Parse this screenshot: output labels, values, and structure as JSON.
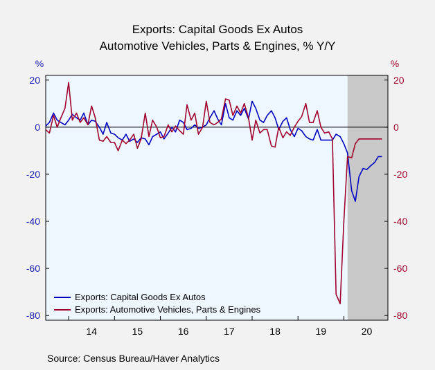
{
  "chart_data": {
    "type": "line",
    "title_lines": [
      "Exports: Capital Goods Ex Autos",
      "Automotive Vehicles, Parts & Engines, % Y/Y"
    ],
    "left_axis_unit": "%",
    "right_axis_unit": "%",
    "ylim": [
      -82,
      22
    ],
    "y_ticks": [
      20,
      0,
      -20,
      -40,
      -60,
      -80
    ],
    "x_range": [
      2013.5,
      2020.96
    ],
    "x_ticks": [
      {
        "label": "14",
        "at": 2014.5
      },
      {
        "label": "15",
        "at": 2015.5
      },
      {
        "label": "16",
        "at": 2016.5
      },
      {
        "label": "17",
        "at": 2017.5
      },
      {
        "label": "18",
        "at": 2018.5
      },
      {
        "label": "19",
        "at": 2019.5
      },
      {
        "label": "20",
        "at": 2020.5
      }
    ],
    "x_boundaries": [
      2014,
      2015,
      2016,
      2017,
      2018,
      2019,
      2020
    ],
    "recession_shading": {
      "start": 2020.08,
      "end": 2020.96,
      "color": "#c8c8c8"
    },
    "zero_line": true,
    "series": [
      {
        "name": "Exports: Capital Goods Ex Autos",
        "color": "#0000c0",
        "x": [
          2013.5,
          2013.58,
          2013.67,
          2013.75,
          2013.83,
          2013.92,
          2014.0,
          2014.08,
          2014.17,
          2014.25,
          2014.33,
          2014.42,
          2014.5,
          2014.58,
          2014.67,
          2014.75,
          2014.83,
          2014.92,
          2015.0,
          2015.08,
          2015.17,
          2015.25,
          2015.33,
          2015.42,
          2015.5,
          2015.58,
          2015.67,
          2015.75,
          2015.83,
          2015.92,
          2016.0,
          2016.08,
          2016.17,
          2016.25,
          2016.33,
          2016.42,
          2016.5,
          2016.58,
          2016.67,
          2016.75,
          2016.83,
          2016.92,
          2017.0,
          2017.08,
          2017.17,
          2017.25,
          2017.33,
          2017.42,
          2017.5,
          2017.58,
          2017.67,
          2017.75,
          2017.83,
          2017.92,
          2018.0,
          2018.08,
          2018.17,
          2018.25,
          2018.33,
          2018.42,
          2018.5,
          2018.58,
          2018.67,
          2018.75,
          2018.83,
          2018.92,
          2019.0,
          2019.08,
          2019.17,
          2019.25,
          2019.33,
          2019.42,
          2019.5,
          2019.58,
          2019.67,
          2019.75,
          2019.83,
          2019.92,
          2020.0,
          2020.08,
          2020.17,
          2020.25,
          2020.33,
          2020.42,
          2020.5,
          2020.58,
          2020.67,
          2020.75,
          2020.83
        ],
        "values": [
          0.5,
          2.0,
          6.0,
          3.0,
          2.0,
          1.0,
          3.0,
          5.5,
          4.0,
          3.0,
          6.0,
          1.0,
          3.0,
          2.5,
          0.0,
          -3.0,
          2.0,
          -2.5,
          -3.0,
          -4.5,
          -5.5,
          -3.0,
          -6.0,
          -5.0,
          -6.5,
          -4.5,
          -5.0,
          -7.5,
          -4.0,
          -3.0,
          -2.0,
          -5.0,
          -2.5,
          0.0,
          -2.0,
          3.0,
          2.0,
          -1.0,
          -0.5,
          1.0,
          -0.5,
          0.0,
          1.0,
          4.0,
          7.0,
          3.5,
          1.0,
          10.0,
          4.0,
          3.0,
          7.0,
          5.0,
          8.0,
          3.5,
          11.0,
          8.0,
          3.0,
          2.0,
          5.0,
          7.0,
          4.0,
          -1.0,
          2.5,
          4.0,
          -1.0,
          -4.0,
          -0.5,
          -1.5,
          -4.0,
          -5.0,
          -5.5,
          -1.0,
          -5.5,
          -5.5,
          -5.5,
          -5.5,
          -3.0,
          -4.0,
          -7.0,
          -11.0,
          -27.0,
          -31.5,
          -21.0,
          -17.5,
          -18.0,
          -16.5,
          -15.0,
          -12.5,
          -12.5
        ]
      },
      {
        "name": "Exports: Automotive Vehicles, Parts & Engines",
        "color": "#a0002a",
        "x": [
          2013.5,
          2013.58,
          2013.67,
          2013.75,
          2013.83,
          2013.92,
          2014.0,
          2014.08,
          2014.17,
          2014.25,
          2014.33,
          2014.42,
          2014.5,
          2014.58,
          2014.67,
          2014.75,
          2014.83,
          2014.92,
          2015.0,
          2015.08,
          2015.17,
          2015.25,
          2015.33,
          2015.42,
          2015.5,
          2015.58,
          2015.67,
          2015.75,
          2015.83,
          2015.92,
          2016.0,
          2016.08,
          2016.17,
          2016.25,
          2016.33,
          2016.42,
          2016.5,
          2016.58,
          2016.67,
          2016.75,
          2016.83,
          2016.92,
          2017.0,
          2017.08,
          2017.17,
          2017.25,
          2017.33,
          2017.42,
          2017.5,
          2017.58,
          2017.67,
          2017.75,
          2017.83,
          2017.92,
          2018.0,
          2018.08,
          2018.17,
          2018.25,
          2018.33,
          2018.42,
          2018.5,
          2018.58,
          2018.67,
          2018.75,
          2018.83,
          2018.92,
          2019.0,
          2019.08,
          2019.17,
          2019.25,
          2019.33,
          2019.42,
          2019.5,
          2019.58,
          2019.67,
          2019.75,
          2019.83,
          2019.92,
          2020.0,
          2020.08,
          2020.17,
          2020.25,
          2020.33,
          2020.42,
          2020.5,
          2020.58,
          2020.67,
          2020.75,
          2020.83
        ],
        "values": [
          -1.0,
          -2.5,
          5.0,
          0.0,
          4.0,
          8.0,
          19.0,
          3.0,
          6.0,
          2.0,
          4.0,
          1.0,
          9.0,
          4.0,
          -5.5,
          -6.0,
          -4.0,
          -6.5,
          -6.5,
          -10.0,
          -5.5,
          -7.0,
          -5.5,
          -3.0,
          -9.0,
          -5.0,
          6.0,
          -4.0,
          3.0,
          0.0,
          -4.5,
          -4.0,
          1.0,
          -2.0,
          0.5,
          -1.5,
          -3.0,
          9.5,
          3.0,
          6.0,
          -3.0,
          0.0,
          11.0,
          2.0,
          1.0,
          2.0,
          3.5,
          12.0,
          11.5,
          5.0,
          9.0,
          6.0,
          10.0,
          4.0,
          -5.5,
          3.0,
          -2.5,
          -1.0,
          -1.0,
          -8.0,
          -8.5,
          0.0,
          -4.5,
          -2.0,
          -3.5,
          0.0,
          2.5,
          4.5,
          10.0,
          2.0,
          2.0,
          7.0,
          0.0,
          -2.5,
          -2.0,
          -5.0,
          -71.0,
          -75.0,
          -40.0,
          -12.5,
          -13.0,
          -7.0,
          -5.0,
          -5.0,
          -5.0,
          -5.0,
          -5.0,
          -5.0,
          -5.0
        ]
      }
    ],
    "source": "Source:  Census Bureau/Haver Analytics"
  }
}
